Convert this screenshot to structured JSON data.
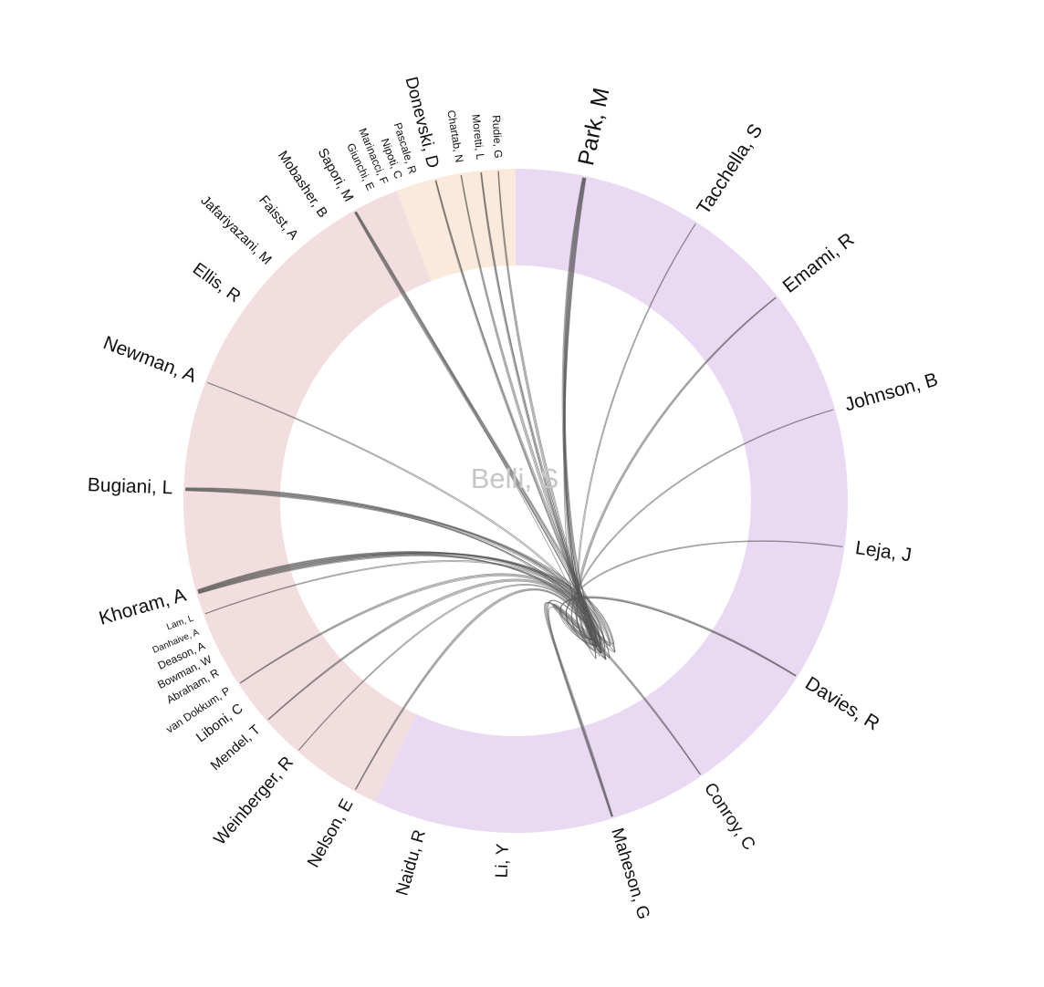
{
  "center_label": "Belli, S",
  "colors": {
    "sector_purple": "#ead9f3",
    "sector_pink": "#f2dede",
    "sector_peach": "#fbeadb",
    "link": "#555555",
    "center_text": "#c6c6c6"
  },
  "sectors": [
    {
      "name": "purple-group",
      "color": "sector_purple",
      "start_deg": 0,
      "end_deg": 205
    },
    {
      "name": "pink-group",
      "color": "sector_pink",
      "start_deg": 205,
      "end_deg": 339
    },
    {
      "name": "peach-group",
      "color": "sector_peach",
      "start_deg": 339,
      "end_deg": 360
    }
  ],
  "authors": [
    {
      "name": "Park, M",
      "angle": 12,
      "size": "xl",
      "weight": 12
    },
    {
      "name": "Tacchella, S",
      "angle": 33,
      "size": "l",
      "weight": 2
    },
    {
      "name": "Emami, R",
      "angle": 52,
      "size": "l",
      "weight": 3
    },
    {
      "name": "Johnson, B",
      "angle": 74,
      "size": "l",
      "weight": 2
    },
    {
      "name": "Leja, J",
      "angle": 98,
      "size": "l",
      "weight": 2
    },
    {
      "name": "Davies, R",
      "angle": 122,
      "size": "l",
      "weight": 4
    },
    {
      "name": "Conroy, C",
      "angle": 146,
      "size": "m",
      "weight": 3
    },
    {
      "name": "Maheson, G",
      "angle": 163,
      "size": "m",
      "weight": 6
    },
    {
      "name": "Li, Y",
      "angle": 182,
      "size": "m",
      "weight": 0
    },
    {
      "name": "Naidu, R",
      "angle": 196,
      "size": "m",
      "weight": 0
    },
    {
      "name": "Nelson, E",
      "angle": 209,
      "size": "m",
      "weight": 3
    },
    {
      "name": "Weinberger, R",
      "angle": 221,
      "size": "m",
      "weight": 2
    },
    {
      "name": "Mendel, T",
      "angle": 228.5,
      "size": "s",
      "weight": 3
    },
    {
      "name": "Liboni, C",
      "angle": 233,
      "size": "s",
      "weight": 0
    },
    {
      "name": "van Dokkum, P",
      "angle": 236.5,
      "size": "xs",
      "weight": 3
    },
    {
      "name": "Abraham, R",
      "angle": 240,
      "size": "xs",
      "weight": 0
    },
    {
      "name": "Bowman, W",
      "angle": 242.5,
      "size": "xs",
      "weight": 0
    },
    {
      "name": "Deason, A",
      "angle": 245,
      "size": "xs",
      "weight": 0
    },
    {
      "name": "Danhaive, A",
      "angle": 247.5,
      "size": "xxs",
      "weight": 0
    },
    {
      "name": "Lam, L",
      "angle": 250,
      "size": "xxs",
      "weight": 2
    },
    {
      "name": "Khoram, A",
      "angle": 254,
      "size": "l",
      "weight": 14
    },
    {
      "name": "Bugiani, L",
      "angle": 272,
      "size": "l",
      "weight": 10
    },
    {
      "name": "Newman, A",
      "angle": 291,
      "size": "l",
      "weight": 2
    },
    {
      "name": "Ellis, R",
      "angle": 306,
      "size": "m",
      "weight": 0
    },
    {
      "name": "Jafariyazani, M",
      "angle": 314,
      "size": "s",
      "weight": 0
    },
    {
      "name": "Faisst, A",
      "angle": 320,
      "size": "s",
      "weight": 0
    },
    {
      "name": "Mobasher, B",
      "angle": 326,
      "size": "s",
      "weight": 0
    },
    {
      "name": "Sapori, M",
      "angle": 331,
      "size": "s",
      "weight": 8
    },
    {
      "name": "Giunchi, E",
      "angle": 335,
      "size": "xs",
      "weight": 0
    },
    {
      "name": "Marinacci, F",
      "angle": 337.5,
      "size": "xs",
      "weight": 0
    },
    {
      "name": "Nipoti, C",
      "angle": 340,
      "size": "xs",
      "weight": 0
    },
    {
      "name": "Pascale, R",
      "angle": 342.5,
      "size": "xs",
      "weight": 0
    },
    {
      "name": "Donevski, D",
      "angle": 346,
      "size": "m",
      "weight": 4
    },
    {
      "name": "Chartab, N",
      "angle": 350.5,
      "size": "xs",
      "weight": 3
    },
    {
      "name": "Moretti, L",
      "angle": 354,
      "size": "xs",
      "weight": 4
    },
    {
      "name": "Rudie, G",
      "angle": 357,
      "size": "xs",
      "weight": 3
    }
  ]
}
